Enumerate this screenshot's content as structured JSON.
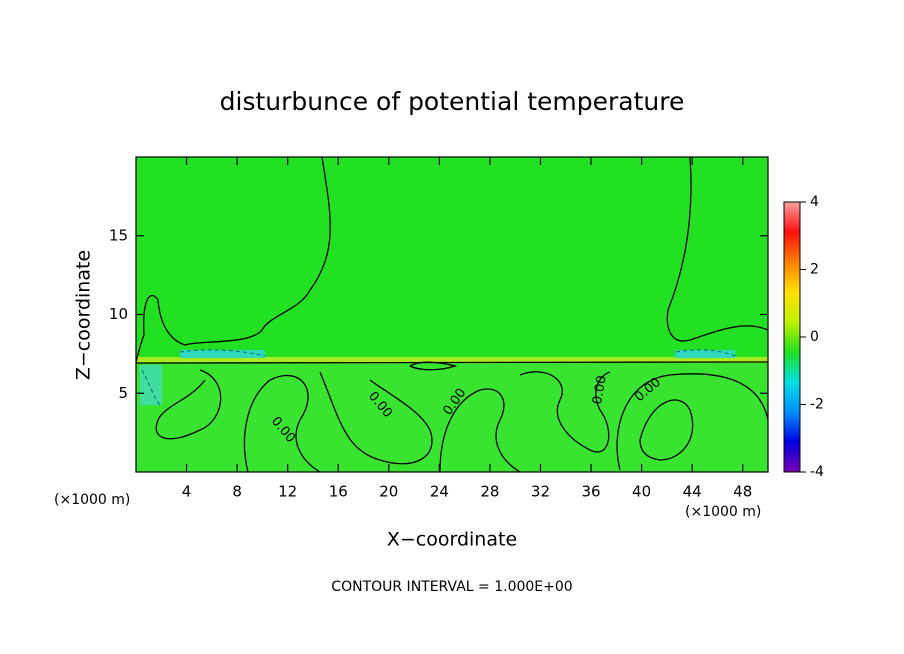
{
  "chart_data": {
    "type": "contour",
    "title": "disturbunce of potential temperature",
    "xlabel": "X−coordinate",
    "ylabel": "Z−coordinate",
    "x_unit_label": "(×1000 m)",
    "y_unit_label": "(×1000 m)",
    "xlim": [
      0,
      50
    ],
    "xticks": [
      4,
      8,
      12,
      16,
      20,
      24,
      28,
      32,
      36,
      40,
      44,
      48
    ],
    "ylim": [
      0,
      20
    ],
    "yticks": [
      5,
      10,
      15
    ],
    "field_color": "#22e022",
    "colorbar": {
      "lim": [
        -4,
        4
      ],
      "ticks": [
        -4,
        -2,
        0,
        2,
        4
      ],
      "colors": [
        "#7a00b0",
        "#0000e0",
        "#0090ff",
        "#00e0e0",
        "#22e022",
        "#c0f000",
        "#ffe000",
        "#ff8000",
        "#ff1010",
        "#ffa0a0"
      ]
    },
    "contour_labels": [
      "0.00",
      "0.00",
      "0.00",
      "0.00",
      "0.00"
    ],
    "footnote": "CONTOUR INTERVAL = 1.000E+00"
  }
}
